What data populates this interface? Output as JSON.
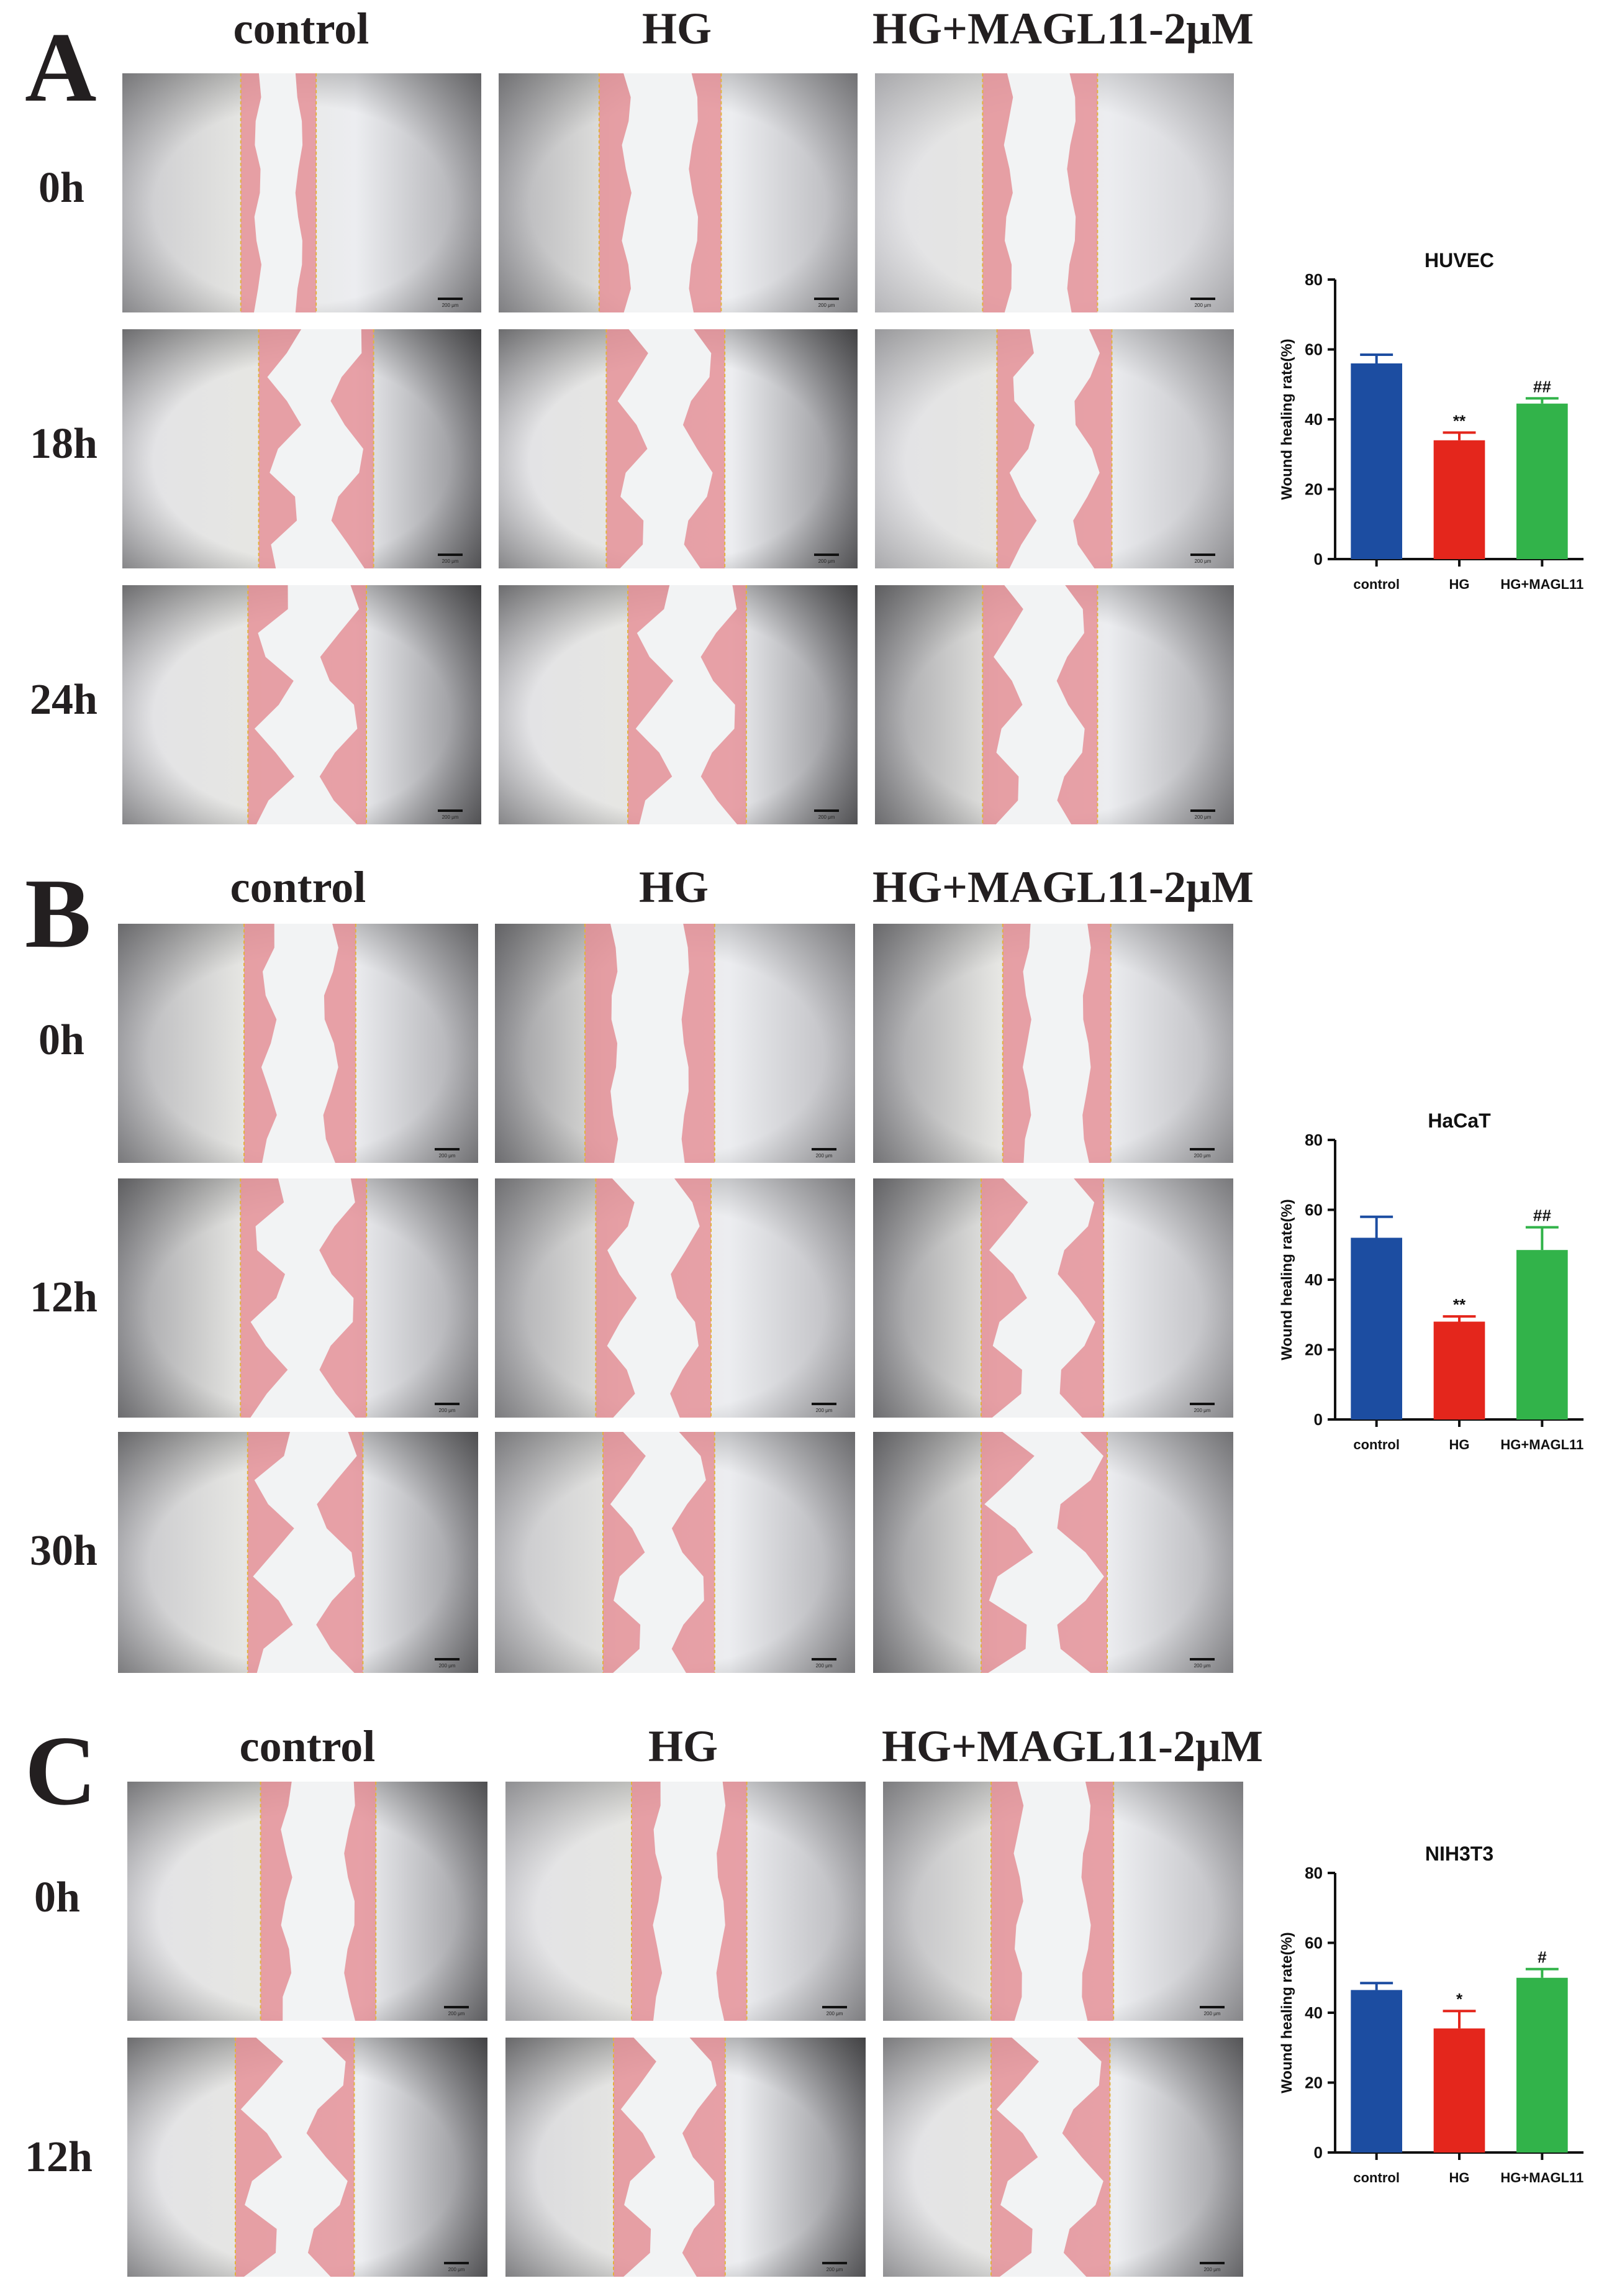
{
  "colors": {
    "control": "#1c4da1",
    "HG": "#e4261c",
    "HG_MAGL11": "#32b34a",
    "wound_overlay": "#e58f96"
  },
  "panels": [
    {
      "letter": "A",
      "columns": [
        "control",
        "HG",
        "HG+MAGL11-2μM"
      ],
      "rows": [
        "0h",
        "18h",
        "24h"
      ],
      "scale_bar_label": "200 μm"
    },
    {
      "letter": "B",
      "columns": [
        "control",
        "HG",
        "HG+MAGL11-2μM"
      ],
      "rows": [
        "0h",
        "12h",
        "30h"
      ],
      "scale_bar_label": "200 μm"
    },
    {
      "letter": "C",
      "columns": [
        "control",
        "HG",
        "HG+MAGL11-2μM"
      ],
      "rows": [
        "0h",
        "12h"
      ],
      "scale_bar_label": "200 μm"
    }
  ],
  "chart_data": [
    {
      "type": "bar",
      "title": "HUVEC",
      "ylabel": "Wound healing rate(%)",
      "xlabel": "",
      "categories": [
        "control",
        "HG",
        "HG+MAGL11"
      ],
      "values": [
        56,
        34,
        44.5
      ],
      "errors": [
        2.5,
        2.2,
        1.5
      ],
      "annotations": [
        "",
        "**",
        "##"
      ],
      "ylim": [
        0,
        80
      ],
      "yticks": [
        0,
        20,
        40,
        60,
        80
      ]
    },
    {
      "type": "bar",
      "title": "HaCaT",
      "ylabel": "Wound healing rate(%)",
      "xlabel": "",
      "categories": [
        "control",
        "HG",
        "HG+MAGL11"
      ],
      "values": [
        52,
        28,
        48.5
      ],
      "errors": [
        6,
        1.5,
        6.5
      ],
      "annotations": [
        "",
        "**",
        "##"
      ],
      "ylim": [
        0,
        80
      ],
      "yticks": [
        0,
        20,
        40,
        60,
        80
      ]
    },
    {
      "type": "bar",
      "title": "NIH3T3",
      "ylabel": "Wound healing rate(%)",
      "xlabel": "",
      "categories": [
        "control",
        "HG",
        "HG+MAGL11"
      ],
      "values": [
        46.5,
        35.5,
        50
      ],
      "errors": [
        2,
        5,
        2.5
      ],
      "annotations": [
        "",
        "*",
        "#"
      ],
      "ylim": [
        0,
        80
      ],
      "yticks": [
        0,
        20,
        40,
        60,
        80
      ]
    }
  ]
}
